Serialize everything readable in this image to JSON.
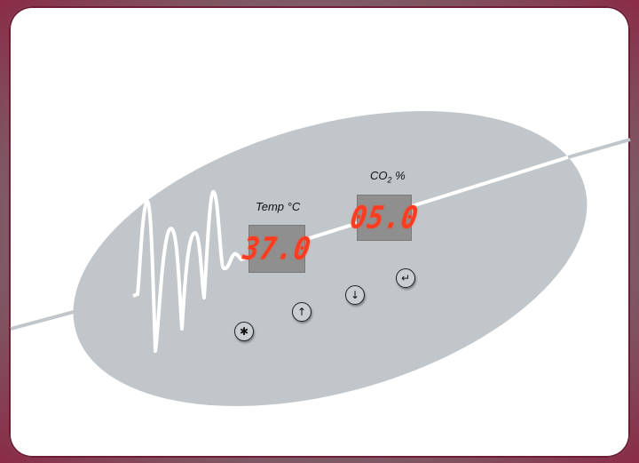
{
  "panel": {
    "temp": {
      "label": "Temp °C",
      "value": "37.0"
    },
    "co2": {
      "label_prefix": "CO",
      "label_sub": "2",
      "label_suffix": " %",
      "value": "05.0"
    },
    "buttons": [
      {
        "name": "settings",
        "icon": "gear-icon",
        "glyph": "✱"
      },
      {
        "name": "up",
        "icon": "arrow-up-icon",
        "glyph": "↑"
      },
      {
        "name": "down",
        "icon": "arrow-down-icon",
        "glyph": "↓"
      },
      {
        "name": "enter",
        "icon": "enter-icon",
        "glyph": "↵"
      }
    ]
  },
  "colors": {
    "frame": "#8a2a46",
    "panel": "#c0c6ca",
    "display_bg": "#8f8f8f",
    "digits": "#ff3b1f"
  }
}
